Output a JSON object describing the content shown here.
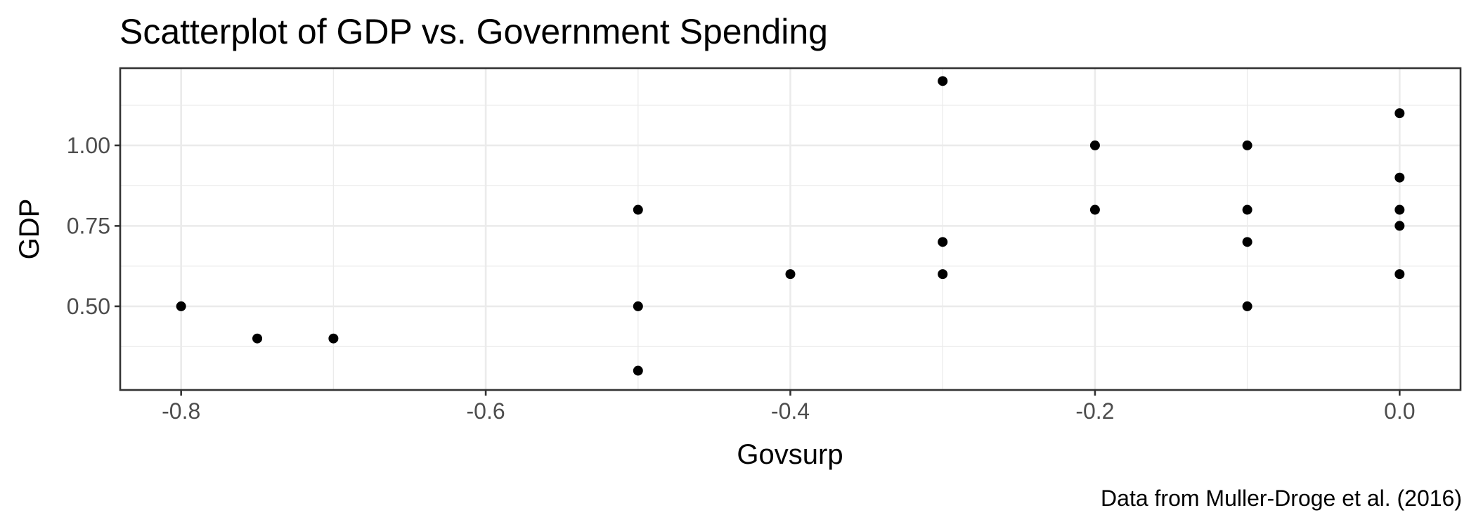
{
  "chart_data": {
    "type": "scatter",
    "title": "Scatterplot of GDP vs. Government Spending",
    "xlabel": "Govsurp",
    "ylabel": "GDP",
    "caption": "Data from Muller-Droge et al. (2016)",
    "xlim": [
      -0.84,
      0.04
    ],
    "ylim": [
      0.24,
      1.24
    ],
    "x_ticks": [
      -0.8,
      -0.6,
      -0.4,
      -0.2,
      0.0
    ],
    "x_tick_labels": [
      "-0.8",
      "-0.6",
      "-0.4",
      "-0.2",
      "0.0"
    ],
    "y_ticks": [
      0.5,
      0.75,
      1.0
    ],
    "y_tick_labels": [
      "0.50",
      "0.75",
      "1.00"
    ],
    "grid": true,
    "point_color": "#000000",
    "points": [
      {
        "x": -0.8,
        "y": 0.5
      },
      {
        "x": -0.75,
        "y": 0.4
      },
      {
        "x": -0.7,
        "y": 0.4
      },
      {
        "x": -0.5,
        "y": 0.8
      },
      {
        "x": -0.5,
        "y": 0.5
      },
      {
        "x": -0.5,
        "y": 0.3
      },
      {
        "x": -0.4,
        "y": 0.6
      },
      {
        "x": -0.3,
        "y": 1.2
      },
      {
        "x": -0.3,
        "y": 0.7
      },
      {
        "x": -0.3,
        "y": 0.6
      },
      {
        "x": -0.2,
        "y": 1.0
      },
      {
        "x": -0.2,
        "y": 0.8
      },
      {
        "x": -0.1,
        "y": 1.0
      },
      {
        "x": -0.1,
        "y": 0.8
      },
      {
        "x": -0.1,
        "y": 0.7
      },
      {
        "x": -0.1,
        "y": 0.5
      },
      {
        "x": 0.0,
        "y": 1.1
      },
      {
        "x": 0.0,
        "y": 0.9
      },
      {
        "x": 0.0,
        "y": 0.8
      },
      {
        "x": 0.0,
        "y": 0.75
      },
      {
        "x": 0.0,
        "y": 0.6
      }
    ]
  }
}
